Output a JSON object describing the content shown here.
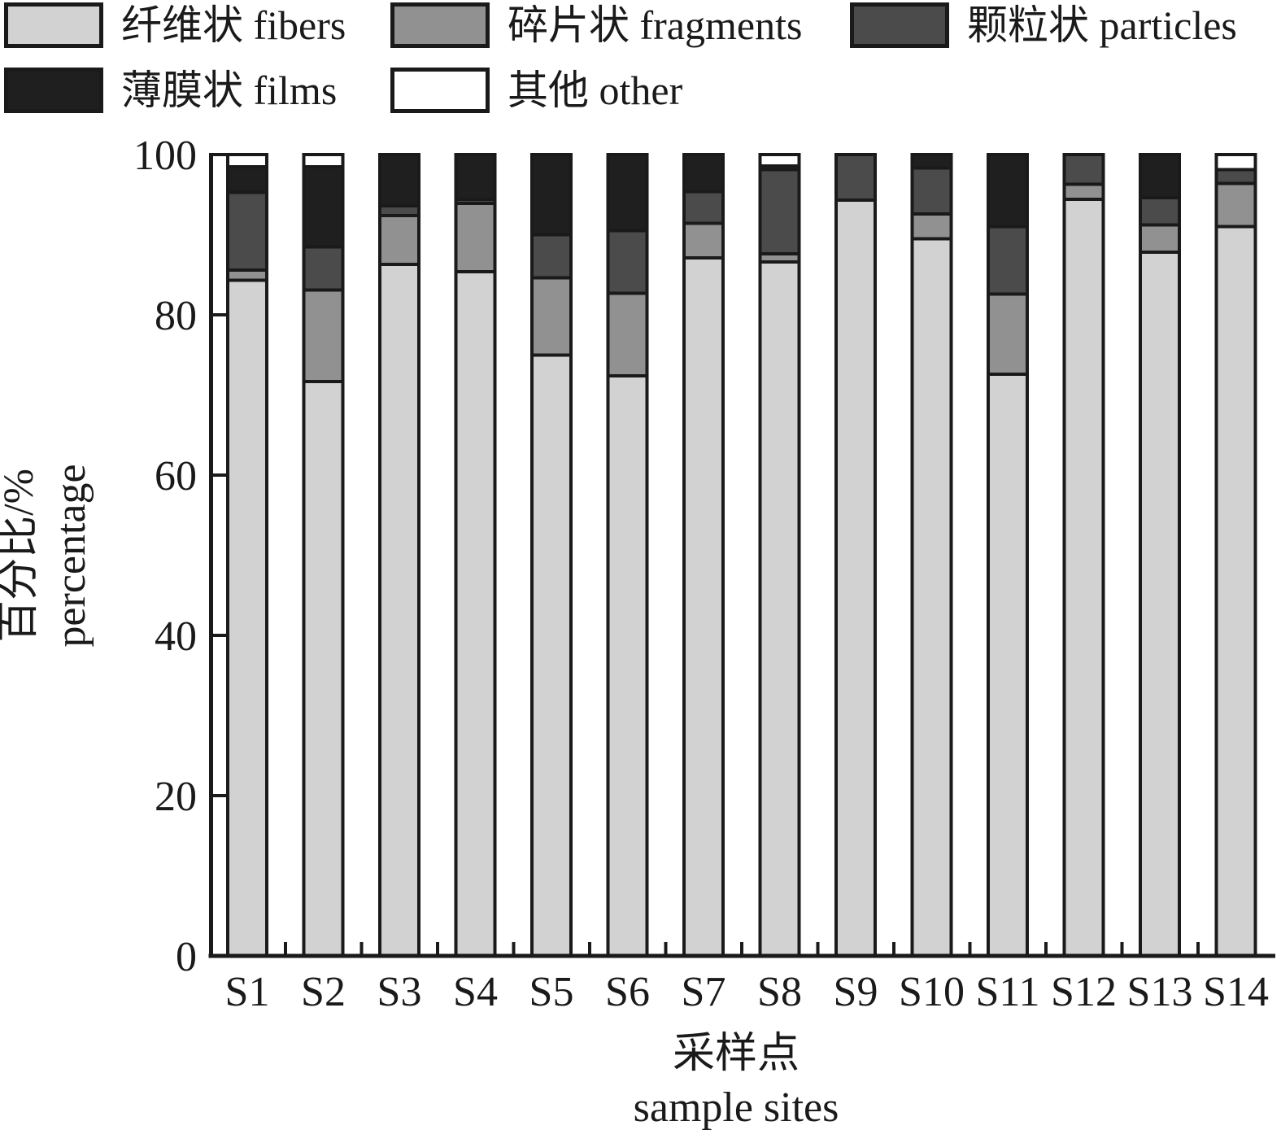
{
  "figure": {
    "background": "#ffffff",
    "axis_color": "#1a1a1a",
    "bar_outline_color": "#1a1a1a"
  },
  "legend": {
    "position": "top-left",
    "items": [
      {
        "label": "纤维状 fibers",
        "color": "#d2d2d2"
      },
      {
        "label": "碎片状 fragments",
        "color": "#919191"
      },
      {
        "label": "颗粒状 particles",
        "color": "#4b4b4b"
      },
      {
        "label": "薄膜状 films",
        "color": "#1f1f1f"
      },
      {
        "label": "其他 other",
        "color": "#ffffff"
      }
    ]
  },
  "axes": {
    "y_title_zh": "百分比/%",
    "y_title_en": "percentage",
    "x_title_zh": "采样点",
    "x_title_en": "sample sites",
    "y_tick_labels": [
      "0",
      "20",
      "40",
      "60",
      "80",
      "100"
    ]
  },
  "chart_data": {
    "type": "bar",
    "stacked": true,
    "categories": [
      "S1",
      "S2",
      "S3",
      "S4",
      "S5",
      "S6",
      "S7",
      "S8",
      "S9",
      "S10",
      "S11",
      "S12",
      "S13",
      "S14"
    ],
    "series": [
      {
        "name": "纤维状 fibers",
        "color": "#d2d2d2",
        "values": [
          84.3,
          71.7,
          86.3,
          85.4,
          75.0,
          72.4,
          87.1,
          86.6,
          94.3,
          89.5,
          72.6,
          94.4,
          87.8,
          91.0
        ]
      },
      {
        "name": "碎片状 fragments",
        "color": "#919191",
        "values": [
          1.3,
          11.4,
          6.1,
          8.5,
          9.6,
          10.3,
          4.3,
          1.0,
          0,
          3.1,
          10.0,
          1.9,
          3.4,
          5.4
        ]
      },
      {
        "name": "颗粒状 particles",
        "color": "#4b4b4b",
        "values": [
          9.7,
          5.4,
          1.2,
          0.5,
          5.4,
          7.8,
          4.0,
          10.5,
          5.7,
          5.7,
          8.4,
          3.7,
          3.4,
          1.7
        ]
      },
      {
        "name": "薄膜状 films",
        "color": "#1f1f1f",
        "values": [
          3.2,
          10.0,
          6.4,
          5.6,
          10.0,
          9.5,
          4.6,
          0.5,
          0,
          1.7,
          9.0,
          0,
          5.4,
          0
        ]
      },
      {
        "name": "其他 other",
        "color": "#ffffff",
        "values": [
          1.5,
          1.5,
          0,
          0,
          0,
          0,
          0,
          1.4,
          0,
          0,
          0,
          0,
          0,
          1.9
        ]
      }
    ],
    "xlabel": "采样点 sample sites",
    "ylabel": "百分比/% percentage",
    "ylim": [
      0,
      100
    ],
    "yticks": [
      0,
      20,
      40,
      60,
      80,
      100
    ],
    "grid": false,
    "legend_position": "top-left"
  }
}
